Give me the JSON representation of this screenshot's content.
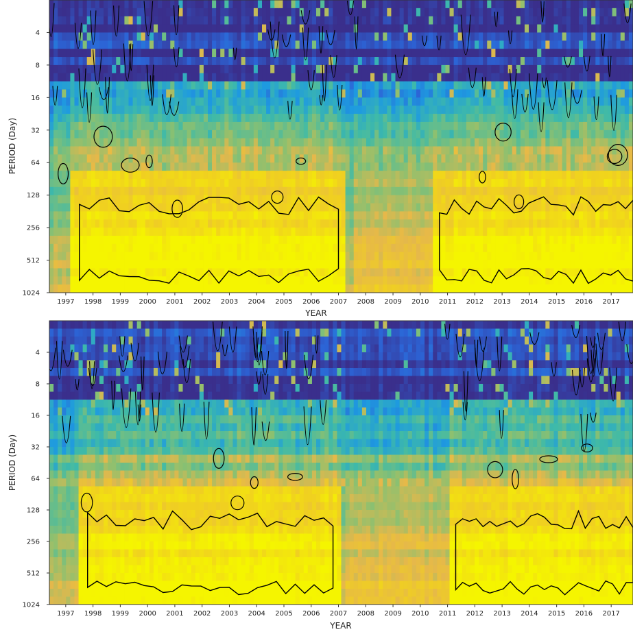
{
  "chart_data": [
    {
      "type": "heatmap",
      "title": "",
      "xlabel": "YEAR",
      "ylabel": "PERIOD (Day)",
      "x_ticks": [
        "1997",
        "1998",
        "1999",
        "2000",
        "2001",
        "2002",
        "2003",
        "2004",
        "2005",
        "2006",
        "2007",
        "2008",
        "2009",
        "2010",
        "2011",
        "2012",
        "2013",
        "2014",
        "2015",
        "2016",
        "2017"
      ],
      "x_range": [
        1996.4,
        2017.8
      ],
      "y_ticks": [
        "4",
        "8",
        "16",
        "32",
        "64",
        "128",
        "256",
        "512",
        "1024"
      ],
      "y_scale": "log2",
      "y_range": [
        2,
        1024
      ],
      "y_reversed": true,
      "colormap": [
        "#3a2f8c",
        "#2c64d6",
        "#1e9ae0",
        "#3fbaa8",
        "#8cc070",
        "#e6b84a",
        "#f0d020",
        "#f5f500"
      ],
      "contour_color": "#000000",
      "high_power_band_days": [
        128,
        1024
      ],
      "high_power_intervals_years": [
        [
          1997.5,
          2007.0
        ],
        [
          2010.7,
          2017.8
        ]
      ],
      "low_power_gap_years": [
        2007.5,
        2010.5
      ],
      "seed": 11
    },
    {
      "type": "heatmap",
      "title": "",
      "xlabel": "YEAR",
      "ylabel": "PERIOD (Day)",
      "x_ticks": [
        "1997",
        "1998",
        "1999",
        "2000",
        "2001",
        "2002",
        "2003",
        "2004",
        "2005",
        "2006",
        "2007",
        "2008",
        "2009",
        "2010",
        "2011",
        "2012",
        "2013",
        "2014",
        "2015",
        "2016",
        "2017"
      ],
      "x_range": [
        1996.4,
        2017.8
      ],
      "y_ticks": [
        "4",
        "8",
        "16",
        "32",
        "64",
        "128",
        "256",
        "512",
        "1024"
      ],
      "y_scale": "log2",
      "y_range": [
        2,
        1024
      ],
      "y_reversed": true,
      "colormap": [
        "#3a2f8c",
        "#2c64d6",
        "#1e9ae0",
        "#3fbaa8",
        "#8cc070",
        "#e6b84a",
        "#f0d020",
        "#f5f500"
      ],
      "contour_color": "#000000",
      "high_power_band_days": [
        128,
        1024
      ],
      "high_power_intervals_years": [
        [
          1997.8,
          2006.8
        ],
        [
          2011.3,
          2017.8
        ]
      ],
      "low_power_gap_years": [
        2007.2,
        2011.0
      ],
      "seed": 29
    }
  ]
}
